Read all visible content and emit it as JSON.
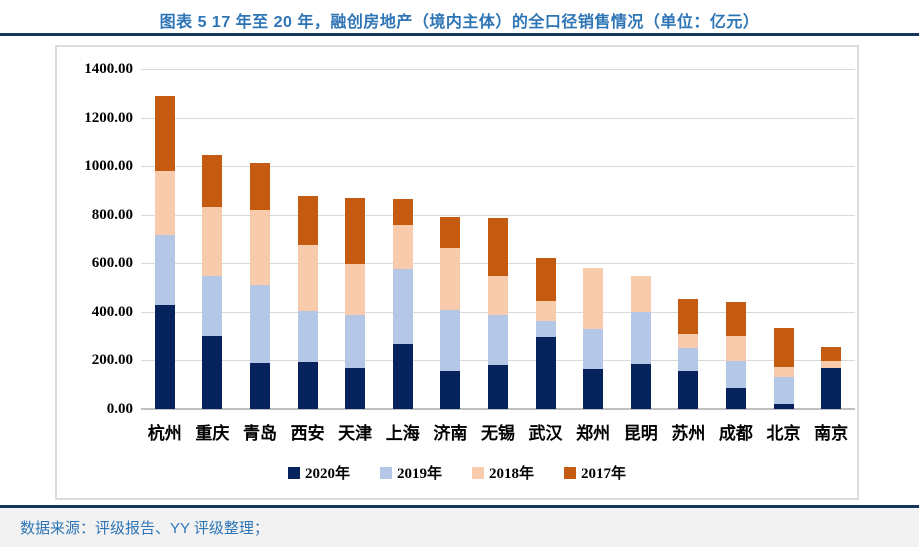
{
  "header": {
    "title": "图表 5 17 年至 20 年，融创房地产（境内主体）的全口径销售情况（单位：亿元）"
  },
  "footer": {
    "source": "数据来源：评级报告、YY 评级整理；"
  },
  "colors": {
    "title_blue": "#2E75B6",
    "rule_navy": "#17365D",
    "gridline": "#d9d9d9",
    "axis": "#bfbfbf",
    "footer_bg": "#f2f2f2"
  },
  "chart_data": {
    "type": "bar",
    "stacked": true,
    "unit": "亿元",
    "title": "17年至20年，融创房地产（境内主体）的全口径销售情况",
    "categories": [
      "杭州",
      "重庆",
      "青岛",
      "西安",
      "天津",
      "上海",
      "济南",
      "无锡",
      "武汉",
      "郑州",
      "昆明",
      "苏州",
      "成都",
      "北京",
      "南京"
    ],
    "series": [
      {
        "name": "2020年",
        "color": "#06235E",
        "values": [
          430,
          300,
          190,
          193,
          170,
          268,
          155,
          180,
          298,
          165,
          185,
          155,
          85,
          20,
          170
        ]
      },
      {
        "name": "2019年",
        "color": "#B4C7E7",
        "values": [
          285,
          246,
          320,
          210,
          216,
          307,
          254,
          206,
          63,
          165,
          213,
          96,
          112,
          110,
          0
        ]
      },
      {
        "name": "2018年",
        "color": "#F8CBAD",
        "values": [
          265,
          284,
          310,
          272,
          212,
          182,
          254,
          162,
          82,
          251,
          150,
          56,
          103,
          45,
          27
        ]
      },
      {
        "name": "2017年",
        "color": "#C55A11",
        "values": [
          310,
          215,
          193,
          203,
          271,
          109,
          128,
          239,
          177,
          0,
          0,
          145,
          141,
          160,
          58
        ]
      }
    ],
    "totals": [
      1290,
      1045,
      1013,
      878,
      869,
      866,
      791,
      787,
      620,
      581,
      548,
      452,
      441,
      335,
      255
    ],
    "ylim": [
      0,
      1400
    ],
    "y_step": 200,
    "y_ticks": [
      "1400.00",
      "1200.00",
      "1000.00",
      "800.00",
      "600.00",
      "400.00",
      "200.00",
      "0.00"
    ],
    "grid": true,
    "legend_position": "bottom"
  }
}
